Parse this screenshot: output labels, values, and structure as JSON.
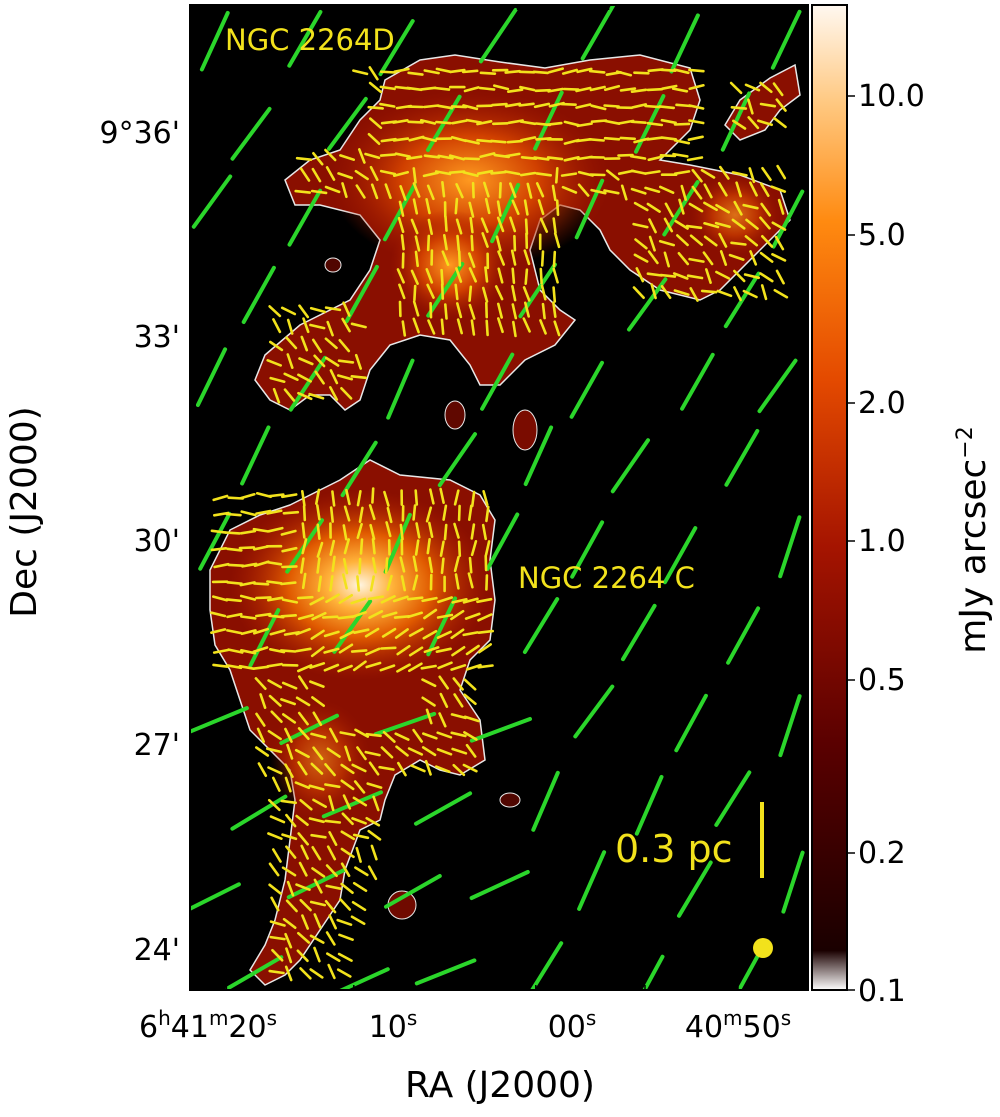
{
  "chart_data": {
    "type": "heatmap",
    "xlabel": "RA (J2000)",
    "ylabel": "Dec (J2000)",
    "x_ticks": [
      {
        "value": "6h41m20s",
        "parts": [
          "6",
          "h",
          "41",
          "m",
          "20",
          "s"
        ]
      },
      {
        "value": "6h41m10s",
        "parts": [
          "10",
          "s"
        ]
      },
      {
        "value": "6h41m00s",
        "parts": [
          "00",
          "s"
        ]
      },
      {
        "value": "6h40m50s",
        "parts": [
          "40",
          "m",
          "50",
          "s"
        ]
      }
    ],
    "y_ticks": [
      "9°36'",
      "33'",
      "30'",
      "27'",
      "24'"
    ],
    "colorbar": {
      "label": "mJy arcsec",
      "label_exp": "−2",
      "scale": "log",
      "range": [
        0.1,
        14
      ],
      "ticks": [
        "10.0",
        "5.0",
        "2.0",
        "1.0",
        "0.5",
        "0.2",
        "0.1"
      ]
    },
    "annotations": [
      "NGC 2264D",
      "NGC 2264 C",
      "0.3 pc"
    ],
    "colors": {
      "background": "#000000",
      "contour": "#e8e8e8",
      "dust_vectors": "#f2e21c",
      "large_scale_vectors": "#2bd62b",
      "text_annotations": "#f2e21c"
    }
  }
}
